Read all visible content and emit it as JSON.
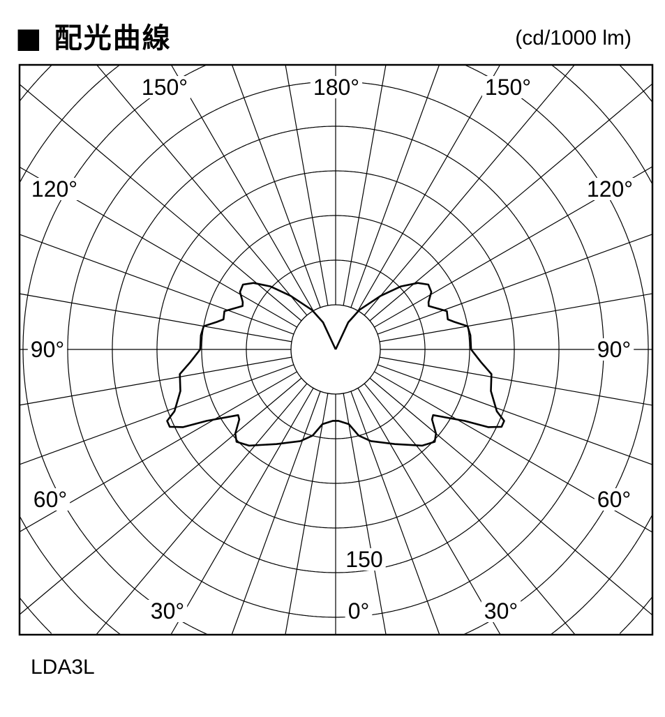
{
  "title": "■ 配光曲線",
  "unit": "(cd/1000 lm)",
  "model": "LDA3L",
  "chart_data": {
    "type": "polar",
    "title": "配光曲線",
    "unit": "cd/1000 lm",
    "series_label": "LDA3L",
    "radial_step": 30,
    "radial_label": "150",
    "angle_step_deg": 10,
    "angle_labels": {
      "top": "180°",
      "upper_left": "150°",
      "upper_right": "150°",
      "left_120": "120°",
      "right_120": "120°",
      "left_90": "90°",
      "right_90": "90°",
      "left_60": "60°",
      "right_60": "60°",
      "left_30": "30°",
      "right_30": "30°",
      "bottom": "0°"
    },
    "symmetric": true,
    "curve": [
      [
        180,
        0
      ],
      [
        155,
        20
      ],
      [
        149,
        31
      ],
      [
        140,
        47
      ],
      [
        134,
        61
      ],
      [
        129,
        71
      ],
      [
        125,
        76
      ],
      [
        121,
        75
      ],
      [
        117,
        70
      ],
      [
        115,
        69
      ],
      [
        109,
        79
      ],
      [
        105,
        78
      ],
      [
        103,
        82
      ],
      [
        100,
        90
      ],
      [
        96,
        91
      ],
      [
        90,
        91
      ],
      [
        85,
        98
      ],
      [
        81,
        106
      ],
      [
        75,
        108
      ],
      [
        69,
        116
      ],
      [
        67,
        123
      ],
      [
        65,
        123
      ],
      [
        63,
        115
      ],
      [
        61,
        99
      ],
      [
        56,
        79
      ],
      [
        54,
        80
      ],
      [
        50,
        88
      ],
      [
        47,
        91
      ],
      [
        42,
        87
      ],
      [
        32,
        75
      ],
      [
        21,
        66
      ],
      [
        15,
        60
      ],
      [
        10,
        51
      ],
      [
        2,
        48
      ],
      [
        0,
        48
      ]
    ]
  }
}
